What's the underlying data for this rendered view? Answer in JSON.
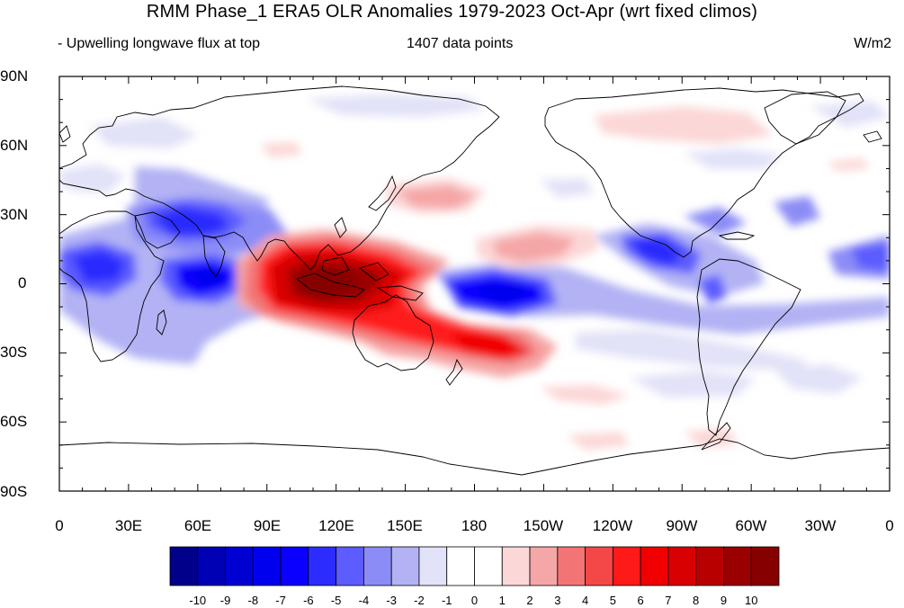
{
  "title": "RMM Phase_1 ERA5 OLR Anomalies 1979-2023 Oct-Apr (wrt fixed climos)",
  "subtitle_left": "- Upwelling longwave flux at top",
  "subtitle_center": "1407 data points",
  "units": "W/m2",
  "lat_labels": [
    "90N",
    "60N",
    "30N",
    "0",
    "30S",
    "60S",
    "90S"
  ],
  "lon_labels": [
    "0",
    "30E",
    "60E",
    "90E",
    "120E",
    "150E",
    "180",
    "150W",
    "120W",
    "90W",
    "60W",
    "30W",
    "0"
  ],
  "colorbar": {
    "labels": [
      "-10",
      "-9",
      "-8",
      "-7",
      "-6",
      "-5",
      "-4",
      "-3",
      "-2",
      "-1",
      "0",
      "1",
      "2",
      "3",
      "4",
      "5",
      "6",
      "7",
      "8",
      "9",
      "10"
    ],
    "colors": [
      "#00008b",
      "#0000b4",
      "#0000d2",
      "#0000ee",
      "#0a00ff",
      "#2c2cff",
      "#5c5cff",
      "#8c8cf6",
      "#b2b2f4",
      "#e2e2f8",
      "#ffffff",
      "#ffffff",
      "#fcd7d7",
      "#f5a6a6",
      "#f37474",
      "#f44848",
      "#ff1a1a",
      "#f00000",
      "#d80000",
      "#b80000",
      "#9a0000",
      "#870000"
    ]
  },
  "colors": {
    "coast": "#000000",
    "frame": "#000000"
  }
}
